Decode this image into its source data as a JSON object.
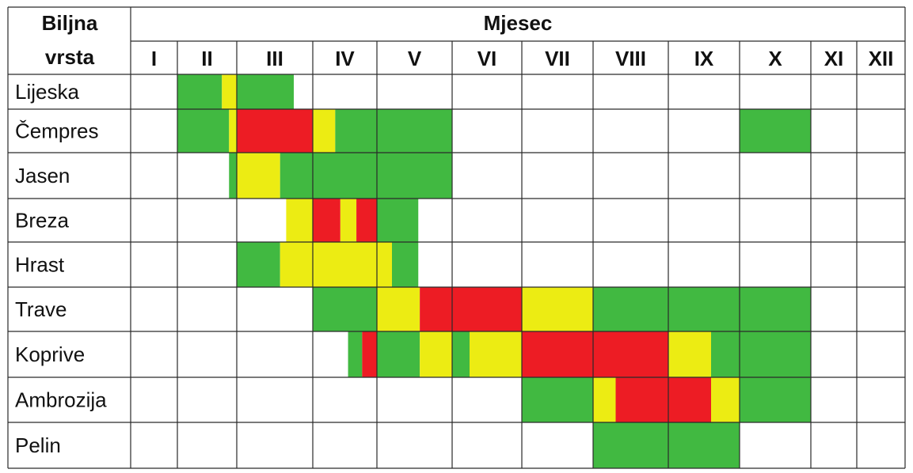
{
  "chart_data": {
    "type": "table",
    "header": {
      "species_label_line1": "Biljna",
      "species_label_line2": "vrsta",
      "month_group_label": "Mjesec"
    },
    "months": [
      "I",
      "II",
      "III",
      "IV",
      "V",
      "VI",
      "VII",
      "VIII",
      "IX",
      "X",
      "XI",
      "XII"
    ],
    "legend_colors": {
      "green": "#41b941",
      "yellow": "#ecec13",
      "red": "#ed1c24"
    },
    "rows": [
      {
        "name": "Lijeska",
        "segments": [
          {
            "start": 1.0,
            "end": 1.75,
            "level": "green"
          },
          {
            "start": 1.75,
            "end": 2.0,
            "level": "yellow"
          },
          {
            "start": 2.0,
            "end": 2.75,
            "level": "green"
          }
        ]
      },
      {
        "name": "Čempres",
        "segments": [
          {
            "start": 1.0,
            "end": 1.87,
            "level": "green"
          },
          {
            "start": 1.87,
            "end": 2.0,
            "level": "yellow"
          },
          {
            "start": 2.0,
            "end": 3.0,
            "level": "red"
          },
          {
            "start": 3.0,
            "end": 3.35,
            "level": "yellow"
          },
          {
            "start": 3.35,
            "end": 5.0,
            "level": "green"
          },
          {
            "start": 9.0,
            "end": 10.0,
            "level": "green"
          }
        ]
      },
      {
        "name": "Jasen",
        "segments": [
          {
            "start": 1.87,
            "end": 2.0,
            "level": "green"
          },
          {
            "start": 2.0,
            "end": 2.57,
            "level": "yellow"
          },
          {
            "start": 2.57,
            "end": 5.0,
            "level": "green"
          }
        ]
      },
      {
        "name": "Breza",
        "segments": [
          {
            "start": 2.65,
            "end": 3.0,
            "level": "yellow"
          },
          {
            "start": 3.0,
            "end": 3.43,
            "level": "red"
          },
          {
            "start": 3.43,
            "end": 3.68,
            "level": "yellow"
          },
          {
            "start": 3.68,
            "end": 4.0,
            "level": "red"
          },
          {
            "start": 4.0,
            "end": 4.55,
            "level": "green"
          }
        ]
      },
      {
        "name": "Hrast",
        "segments": [
          {
            "start": 2.0,
            "end": 2.57,
            "level": "green"
          },
          {
            "start": 2.57,
            "end": 4.2,
            "level": "yellow"
          },
          {
            "start": 4.2,
            "end": 4.55,
            "level": "green"
          }
        ]
      },
      {
        "name": "Trave",
        "segments": [
          {
            "start": 3.0,
            "end": 4.0,
            "level": "green"
          },
          {
            "start": 4.0,
            "end": 4.57,
            "level": "yellow"
          },
          {
            "start": 4.57,
            "end": 6.0,
            "level": "red"
          },
          {
            "start": 6.0,
            "end": 7.0,
            "level": "yellow"
          },
          {
            "start": 7.0,
            "end": 10.0,
            "level": "green"
          }
        ]
      },
      {
        "name": "Koprive",
        "segments": [
          {
            "start": 3.55,
            "end": 3.77,
            "level": "green"
          },
          {
            "start": 3.77,
            "end": 4.0,
            "level": "red"
          },
          {
            "start": 4.0,
            "end": 4.57,
            "level": "green"
          },
          {
            "start": 4.57,
            "end": 5.0,
            "level": "yellow"
          },
          {
            "start": 5.0,
            "end": 5.25,
            "level": "green"
          },
          {
            "start": 5.25,
            "end": 6.0,
            "level": "yellow"
          },
          {
            "start": 6.0,
            "end": 8.0,
            "level": "red"
          },
          {
            "start": 8.0,
            "end": 8.6,
            "level": "yellow"
          },
          {
            "start": 8.6,
            "end": 10.0,
            "level": "green"
          }
        ]
      },
      {
        "name": "Ambrozija",
        "segments": [
          {
            "start": 6.0,
            "end": 7.0,
            "level": "green"
          },
          {
            "start": 7.0,
            "end": 7.3,
            "level": "yellow"
          },
          {
            "start": 7.3,
            "end": 8.6,
            "level": "red"
          },
          {
            "start": 8.6,
            "end": 9.0,
            "level": "yellow"
          },
          {
            "start": 9.0,
            "end": 10.0,
            "level": "green"
          }
        ]
      },
      {
        "name": "Pelin",
        "segments": [
          {
            "start": 7.0,
            "end": 9.0,
            "level": "green"
          }
        ]
      }
    ]
  }
}
